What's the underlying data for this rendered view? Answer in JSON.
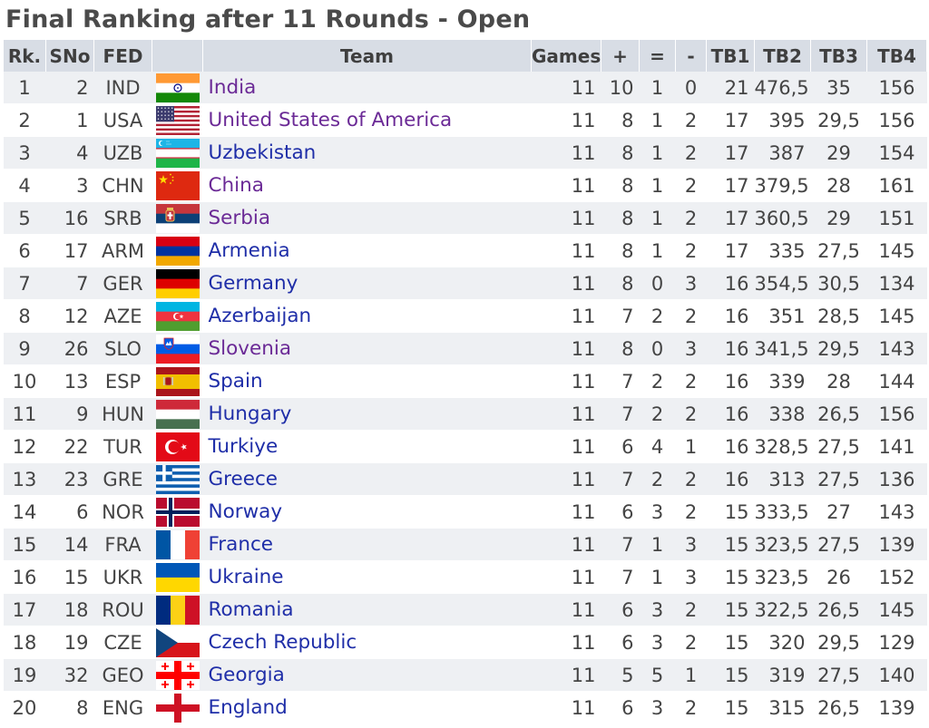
{
  "title": "Final Ranking after 11 Rounds - Open",
  "headers": {
    "rk": "Rk.",
    "sno": "SNo",
    "fed": "FED",
    "team": "Team",
    "games": "Games",
    "plus": "+",
    "eq": "=",
    "minus": "-",
    "tb1": "TB1",
    "tb2": "TB2",
    "tb3": "TB3",
    "tb4": "TB4"
  },
  "rows": [
    {
      "rk": "1",
      "sno": "2",
      "fed": "IND",
      "team": "India",
      "visited": true,
      "games": "11",
      "plus": "10",
      "eq": "1",
      "minus": "0",
      "tb1": "21",
      "tb2": "476,5",
      "tb3": "35",
      "tb4": "156",
      "flag": "india-flag-icon"
    },
    {
      "rk": "2",
      "sno": "1",
      "fed": "USA",
      "team": "United States of America",
      "visited": true,
      "games": "11",
      "plus": "8",
      "eq": "1",
      "minus": "2",
      "tb1": "17",
      "tb2": "395",
      "tb3": "29,5",
      "tb4": "156",
      "flag": "usa-flag-icon"
    },
    {
      "rk": "3",
      "sno": "4",
      "fed": "UZB",
      "team": "Uzbekistan",
      "visited": false,
      "games": "11",
      "plus": "8",
      "eq": "1",
      "minus": "2",
      "tb1": "17",
      "tb2": "387",
      "tb3": "29",
      "tb4": "154",
      "flag": "uzbekistan-flag-icon"
    },
    {
      "rk": "4",
      "sno": "3",
      "fed": "CHN",
      "team": "China",
      "visited": true,
      "games": "11",
      "plus": "8",
      "eq": "1",
      "minus": "2",
      "tb1": "17",
      "tb2": "379,5",
      "tb3": "28",
      "tb4": "161",
      "flag": "china-flag-icon"
    },
    {
      "rk": "5",
      "sno": "16",
      "fed": "SRB",
      "team": "Serbia",
      "visited": true,
      "games": "11",
      "plus": "8",
      "eq": "1",
      "minus": "2",
      "tb1": "17",
      "tb2": "360,5",
      "tb3": "29",
      "tb4": "151",
      "flag": "serbia-flag-icon"
    },
    {
      "rk": "6",
      "sno": "17",
      "fed": "ARM",
      "team": "Armenia",
      "visited": false,
      "games": "11",
      "plus": "8",
      "eq": "1",
      "minus": "2",
      "tb1": "17",
      "tb2": "335",
      "tb3": "27,5",
      "tb4": "145",
      "flag": "armenia-flag-icon"
    },
    {
      "rk": "7",
      "sno": "7",
      "fed": "GER",
      "team": "Germany",
      "visited": false,
      "games": "11",
      "plus": "8",
      "eq": "0",
      "minus": "3",
      "tb1": "16",
      "tb2": "354,5",
      "tb3": "30,5",
      "tb4": "134",
      "flag": "germany-flag-icon"
    },
    {
      "rk": "8",
      "sno": "12",
      "fed": "AZE",
      "team": "Azerbaijan",
      "visited": false,
      "games": "11",
      "plus": "7",
      "eq": "2",
      "minus": "2",
      "tb1": "16",
      "tb2": "351",
      "tb3": "28,5",
      "tb4": "145",
      "flag": "azerbaijan-flag-icon"
    },
    {
      "rk": "9",
      "sno": "26",
      "fed": "SLO",
      "team": "Slovenia",
      "visited": true,
      "games": "11",
      "plus": "8",
      "eq": "0",
      "minus": "3",
      "tb1": "16",
      "tb2": "341,5",
      "tb3": "29,5",
      "tb4": "143",
      "flag": "slovenia-flag-icon"
    },
    {
      "rk": "10",
      "sno": "13",
      "fed": "ESP",
      "team": "Spain",
      "visited": false,
      "games": "11",
      "plus": "7",
      "eq": "2",
      "minus": "2",
      "tb1": "16",
      "tb2": "339",
      "tb3": "28",
      "tb4": "144",
      "flag": "spain-flag-icon"
    },
    {
      "rk": "11",
      "sno": "9",
      "fed": "HUN",
      "team": "Hungary",
      "visited": false,
      "games": "11",
      "plus": "7",
      "eq": "2",
      "minus": "2",
      "tb1": "16",
      "tb2": "338",
      "tb3": "26,5",
      "tb4": "156",
      "flag": "hungary-flag-icon"
    },
    {
      "rk": "12",
      "sno": "22",
      "fed": "TUR",
      "team": "Turkiye",
      "visited": false,
      "games": "11",
      "plus": "6",
      "eq": "4",
      "minus": "1",
      "tb1": "16",
      "tb2": "328,5",
      "tb3": "27,5",
      "tb4": "141",
      "flag": "turkiye-flag-icon"
    },
    {
      "rk": "13",
      "sno": "23",
      "fed": "GRE",
      "team": "Greece",
      "visited": false,
      "games": "11",
      "plus": "7",
      "eq": "2",
      "minus": "2",
      "tb1": "16",
      "tb2": "313",
      "tb3": "27,5",
      "tb4": "136",
      "flag": "greece-flag-icon"
    },
    {
      "rk": "14",
      "sno": "6",
      "fed": "NOR",
      "team": "Norway",
      "visited": false,
      "games": "11",
      "plus": "6",
      "eq": "3",
      "minus": "2",
      "tb1": "15",
      "tb2": "333,5",
      "tb3": "27",
      "tb4": "143",
      "flag": "norway-flag-icon"
    },
    {
      "rk": "15",
      "sno": "14",
      "fed": "FRA",
      "team": "France",
      "visited": false,
      "games": "11",
      "plus": "7",
      "eq": "1",
      "minus": "3",
      "tb1": "15",
      "tb2": "323,5",
      "tb3": "27,5",
      "tb4": "139",
      "flag": "france-flag-icon"
    },
    {
      "rk": "16",
      "sno": "15",
      "fed": "UKR",
      "team": "Ukraine",
      "visited": false,
      "games": "11",
      "plus": "7",
      "eq": "1",
      "minus": "3",
      "tb1": "15",
      "tb2": "323,5",
      "tb3": "26",
      "tb4": "152",
      "flag": "ukraine-flag-icon"
    },
    {
      "rk": "17",
      "sno": "18",
      "fed": "ROU",
      "team": "Romania",
      "visited": false,
      "games": "11",
      "plus": "6",
      "eq": "3",
      "minus": "2",
      "tb1": "15",
      "tb2": "322,5",
      "tb3": "26,5",
      "tb4": "145",
      "flag": "romania-flag-icon"
    },
    {
      "rk": "18",
      "sno": "19",
      "fed": "CZE",
      "team": "Czech Republic",
      "visited": false,
      "games": "11",
      "plus": "6",
      "eq": "3",
      "minus": "2",
      "tb1": "15",
      "tb2": "320",
      "tb3": "29,5",
      "tb4": "129",
      "flag": "czech-flag-icon"
    },
    {
      "rk": "19",
      "sno": "32",
      "fed": "GEO",
      "team": "Georgia",
      "visited": false,
      "games": "11",
      "plus": "5",
      "eq": "5",
      "minus": "1",
      "tb1": "15",
      "tb2": "319",
      "tb3": "27,5",
      "tb4": "140",
      "flag": "georgia-flag-icon"
    },
    {
      "rk": "20",
      "sno": "8",
      "fed": "ENG",
      "team": "England",
      "visited": false,
      "games": "11",
      "plus": "6",
      "eq": "3",
      "minus": "2",
      "tb1": "15",
      "tb2": "315",
      "tb3": "26,5",
      "tb4": "139",
      "flag": "england-flag-icon"
    }
  ],
  "colors": {
    "visited_link": "#6b2a96",
    "link": "#1f2ea8",
    "header_bg": "#d8dde5",
    "row_alt_bg": "#eef0f3"
  }
}
